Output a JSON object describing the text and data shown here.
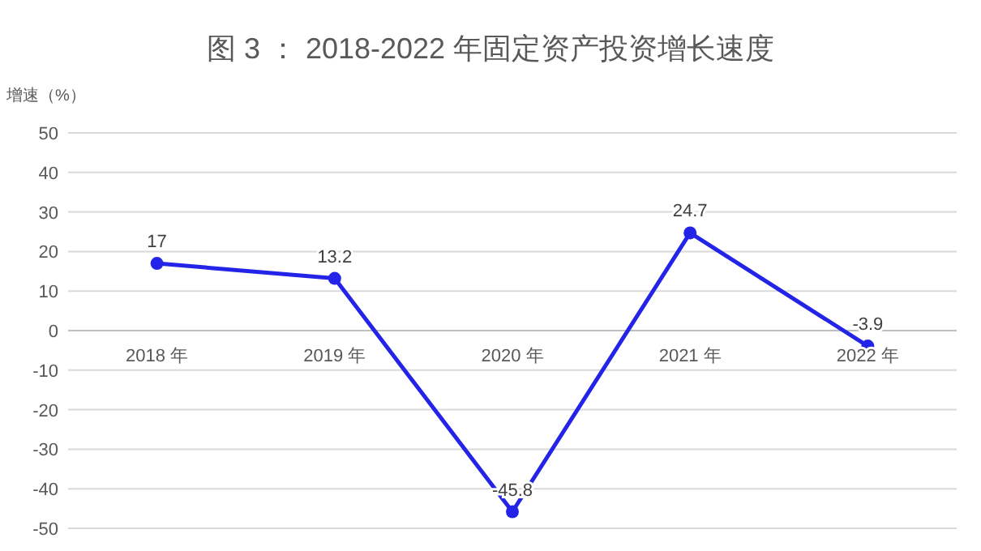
{
  "chart_data": {
    "type": "line",
    "title": "图 3 ： 2018-2022 年固定资产投资增长速度",
    "ylabel": "增速（%）",
    "categories": [
      "2018 年",
      "2019 年",
      "2020 年",
      "2021 年",
      "2022 年"
    ],
    "series": [
      {
        "color": "#2424e8",
        "values": [
          17,
          13.2,
          -45.8,
          24.7,
          -3.9
        ]
      }
    ],
    "ylim": [
      -50,
      50
    ],
    "yticks": [
      -50,
      -40,
      -30,
      -20,
      -10,
      0,
      10,
      20,
      30,
      40,
      50
    ],
    "grid": "y",
    "marker": "circle",
    "line_style": "solid",
    "data_labels": true
  }
}
